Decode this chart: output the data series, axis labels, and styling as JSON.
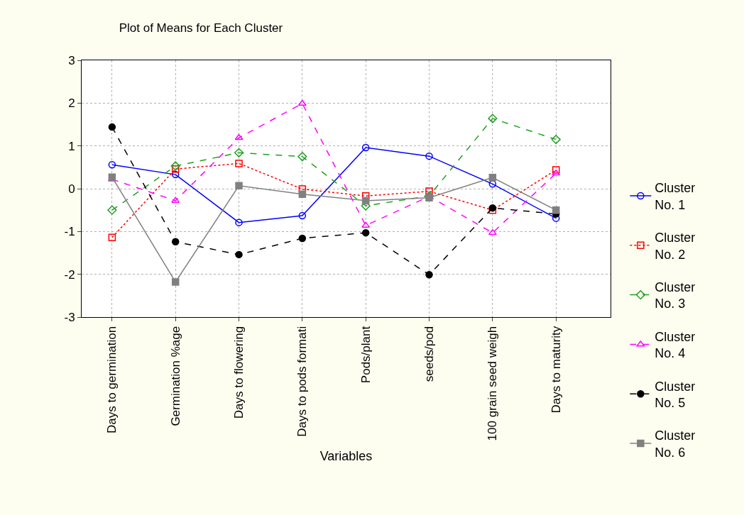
{
  "chart_data": {
    "type": "line",
    "title": "Plot of Means for Each Cluster",
    "xlabel": "Variables",
    "categories": [
      "Days to germination",
      "Germination %age",
      "Days to flowering",
      "Days to pods formati",
      "Pods/plant",
      "seeds/pod",
      "100 grain seed weigh",
      "Days to maturity"
    ],
    "series": [
      {
        "name": "Cluster No. 1",
        "color": "#0000ff",
        "marker": "circle",
        "line_style": "solid",
        "values": [
          0.56,
          0.33,
          -0.79,
          -0.63,
          0.96,
          0.76,
          0.11,
          -0.69
        ]
      },
      {
        "name": "Cluster No. 2",
        "color": "#ff0000",
        "marker": "square",
        "line_style": "dotted",
        "values": [
          -1.14,
          0.46,
          0.59,
          -0.01,
          -0.17,
          -0.06,
          -0.5,
          0.44
        ]
      },
      {
        "name": "Cluster No. 3",
        "color": "#22a022",
        "marker": "diamond",
        "line_style": "dashed",
        "values": [
          -0.5,
          0.53,
          0.84,
          0.75,
          -0.4,
          -0.17,
          1.64,
          1.15
        ]
      },
      {
        "name": "Cluster No. 4",
        "color": "#ff00ff",
        "marker": "triangle",
        "line_style": "dashed",
        "values": [
          0.22,
          -0.28,
          1.19,
          1.99,
          -0.86,
          -0.18,
          -1.03,
          0.36
        ]
      },
      {
        "name": "Cluster No. 5",
        "color": "#000000",
        "marker": "circle",
        "line_style": "dashed",
        "values": [
          1.44,
          -1.24,
          -1.54,
          -1.16,
          -1.03,
          -2.01,
          -0.45,
          -0.59
        ]
      },
      {
        "name": "Cluster No. 6",
        "color": "#808080",
        "marker": "square",
        "line_style": "solid",
        "values": [
          0.27,
          -2.18,
          0.07,
          -0.13,
          -0.28,
          -0.21,
          0.26,
          -0.5
        ]
      }
    ],
    "ylim": [
      -3,
      3
    ],
    "yticks": [
      -3,
      -2,
      -1,
      0,
      1,
      2,
      3
    ],
    "grid": true,
    "legend": "right"
  }
}
